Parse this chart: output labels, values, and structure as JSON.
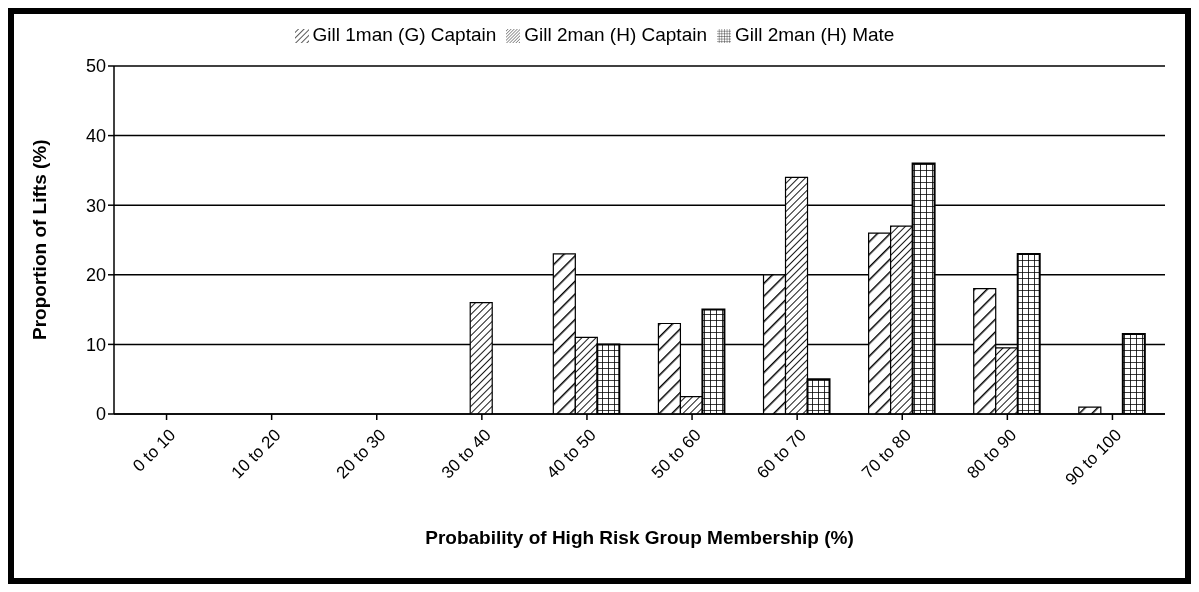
{
  "chart_data": {
    "type": "bar",
    "xlabel": "Probability of High Risk Group Membership (%)",
    "ylabel": "Proportion of Lifts (%)",
    "categories": [
      "0 to 10",
      "10 to 20",
      "20 to 30",
      "30 to 40",
      "40 to 50",
      "50 to 60",
      "60 to 70",
      "70 to 80",
      "80 to 90",
      "90 to 100"
    ],
    "series": [
      {
        "name": "Gill 1man (G) Captain",
        "color": "#000000",
        "values": [
          0,
          0,
          0,
          0,
          23,
          13,
          20,
          26,
          18,
          1
        ]
      },
      {
        "name": "Gill 2man (H) Captain",
        "color": "#000000",
        "values": [
          0,
          0,
          0,
          16,
          11,
          2.5,
          34,
          27,
          9.5,
          0
        ]
      },
      {
        "name": "Gill 2man (H) Mate",
        "color": "#000000",
        "values": [
          0,
          0,
          0,
          0,
          10,
          15,
          5,
          36,
          23,
          11.5
        ]
      }
    ],
    "ylim": [
      0,
      50
    ],
    "yticks": [
      0,
      10,
      20,
      30,
      40,
      50
    ],
    "grid": "y",
    "legend": "top"
  }
}
